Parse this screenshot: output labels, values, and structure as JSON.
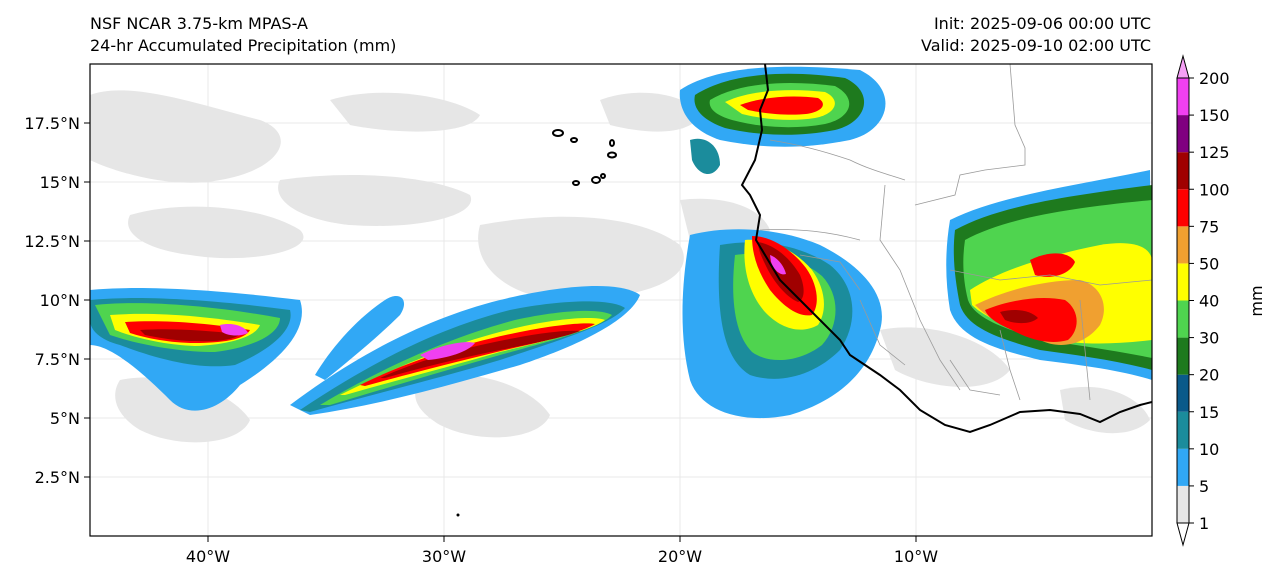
{
  "title": {
    "model": "NSF NCAR 3.75-km MPAS-A",
    "field": "24-hr Accumulated Precipitation (mm)",
    "init": "Init: 2025-09-06 00:00 UTC",
    "valid": "Valid: 2025-09-10 02:00 UTC"
  },
  "map": {
    "lon_range": [
      -45,
      0
    ],
    "lat_range": [
      0,
      20
    ],
    "lon_ticks": [
      {
        "value": -40,
        "label": "40°W"
      },
      {
        "value": -30,
        "label": "30°W"
      },
      {
        "value": -20,
        "label": "20°W"
      },
      {
        "value": -10,
        "label": "10°W"
      }
    ],
    "lat_ticks": [
      {
        "value": 2.5,
        "label": "2.5°N"
      },
      {
        "value": 5,
        "label": "5°N"
      },
      {
        "value": 7.5,
        "label": "7.5°N"
      },
      {
        "value": 10,
        "label": "10°N"
      },
      {
        "value": 12.5,
        "label": "12.5°N"
      },
      {
        "value": 15,
        "label": "15°N"
      },
      {
        "value": 17.5,
        "label": "17.5°N"
      }
    ]
  },
  "colorbar": {
    "unit_label": "mm",
    "levels": [
      {
        "label": "1",
        "color": "#e6e6e6"
      },
      {
        "label": "5",
        "color": "#31a8f5"
      },
      {
        "label": "10",
        "color": "#1b8c9c"
      },
      {
        "label": "15",
        "color": "#0a5a8a"
      },
      {
        "label": "20",
        "color": "#1e7a1e"
      },
      {
        "label": "30",
        "color": "#4fd44f"
      },
      {
        "label": "40",
        "color": "#ffff00"
      },
      {
        "label": "50",
        "color": "#f0a030"
      },
      {
        "label": "75",
        "color": "#ff0000"
      },
      {
        "label": "100",
        "color": "#a00000"
      },
      {
        "label": "125",
        "color": "#800080"
      },
      {
        "label": "150",
        "color": "#f040f0"
      },
      {
        "label": "200",
        "color": ""
      }
    ],
    "extend_max_color": "#f5a0f5",
    "extend_min_color": "#ffffff"
  }
}
